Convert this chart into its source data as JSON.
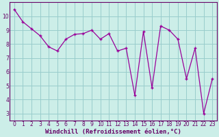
{
  "x": [
    0,
    1,
    2,
    3,
    4,
    5,
    6,
    7,
    8,
    9,
    10,
    11,
    12,
    13,
    14,
    15,
    16,
    17,
    18,
    19,
    20,
    21,
    22,
    23
  ],
  "y": [
    10.5,
    9.6,
    9.1,
    8.6,
    7.8,
    7.5,
    8.35,
    8.7,
    8.75,
    9.0,
    8.35,
    8.75,
    7.5,
    7.7,
    4.3,
    8.9,
    4.85,
    9.3,
    9.0,
    8.35,
    5.5,
    7.7,
    3.0,
    5.5
  ],
  "line_color": "#990099",
  "marker": "P",
  "bg_color": "#cceee8",
  "grid_color": "#99cccc",
  "xlabel": "Windchill (Refroidissement éolien,°C)",
  "ylim": [
    2.5,
    11.0
  ],
  "xlim": [
    -0.5,
    23.5
  ],
  "yticks": [
    3,
    4,
    5,
    6,
    7,
    8,
    9,
    10
  ],
  "xticks": [
    0,
    1,
    2,
    3,
    4,
    5,
    6,
    7,
    8,
    9,
    10,
    11,
    12,
    13,
    14,
    15,
    16,
    17,
    18,
    19,
    20,
    21,
    22,
    23
  ],
  "tick_label_fontsize": 5.5,
  "xlabel_fontsize": 6.5,
  "axis_color": "#660066",
  "spine_color": "#660066",
  "markersize": 3.5,
  "linewidth": 0.9
}
